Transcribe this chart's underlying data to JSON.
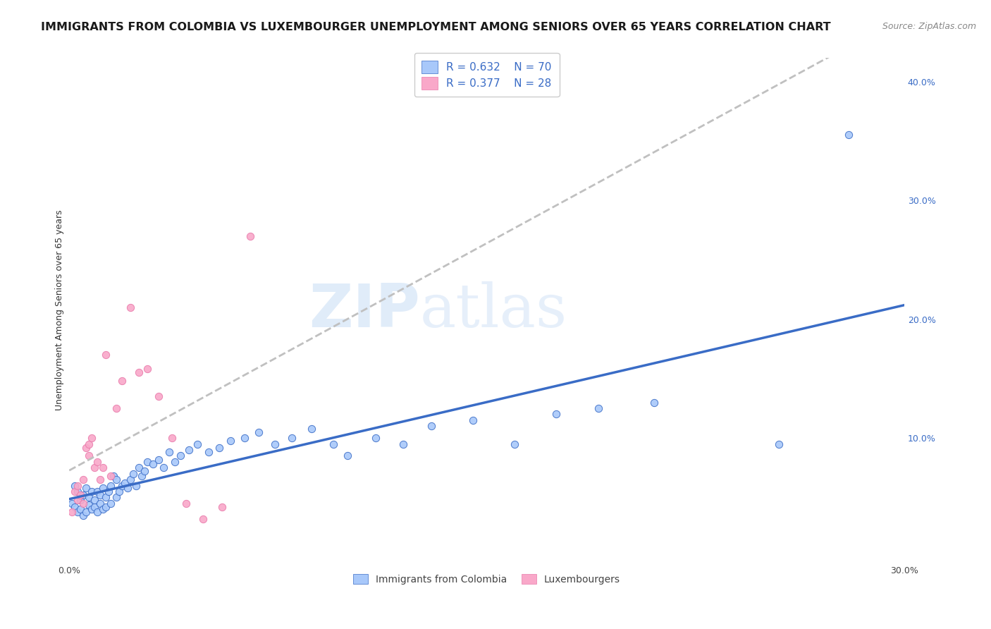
{
  "title": "IMMIGRANTS FROM COLOMBIA VS LUXEMBOURGER UNEMPLOYMENT AMONG SENIORS OVER 65 YEARS CORRELATION CHART",
  "source": "Source: ZipAtlas.com",
  "ylabel": "Unemployment Among Seniors over 65 years",
  "xlim": [
    0.0,
    0.3
  ],
  "ylim": [
    -0.005,
    0.42
  ],
  "right_yticks": [
    0.0,
    0.1,
    0.2,
    0.3,
    0.4
  ],
  "right_yticklabels": [
    "",
    "10.0%",
    "20.0%",
    "30.0%",
    "40.0%"
  ],
  "xticks": [
    0.0,
    0.05,
    0.1,
    0.15,
    0.2,
    0.25,
    0.3
  ],
  "xticklabels": [
    "0.0%",
    "",
    "",
    "",
    "",
    "",
    "30.0%"
  ],
  "color_colombia": "#a8c8fa",
  "color_luxembourg": "#f9a8c9",
  "color_line_colombia": "#3a6cc6",
  "color_line_luxembourg": "#e87aaa",
  "color_line_dashed": "#c0c0c0",
  "watermark_zip": "ZIP",
  "watermark_atlas": "atlas",
  "colombia_x": [
    0.001,
    0.002,
    0.002,
    0.003,
    0.003,
    0.004,
    0.004,
    0.005,
    0.005,
    0.006,
    0.006,
    0.007,
    0.007,
    0.008,
    0.008,
    0.009,
    0.009,
    0.01,
    0.01,
    0.011,
    0.011,
    0.012,
    0.012,
    0.013,
    0.013,
    0.014,
    0.015,
    0.015,
    0.016,
    0.017,
    0.017,
    0.018,
    0.019,
    0.02,
    0.021,
    0.022,
    0.023,
    0.024,
    0.025,
    0.026,
    0.027,
    0.028,
    0.03,
    0.032,
    0.034,
    0.036,
    0.038,
    0.04,
    0.043,
    0.046,
    0.05,
    0.054,
    0.058,
    0.063,
    0.068,
    0.074,
    0.08,
    0.087,
    0.095,
    0.1,
    0.11,
    0.12,
    0.13,
    0.145,
    0.16,
    0.175,
    0.19,
    0.21,
    0.255,
    0.28
  ],
  "colombia_y": [
    0.045,
    0.042,
    0.06,
    0.038,
    0.055,
    0.04,
    0.048,
    0.035,
    0.052,
    0.038,
    0.058,
    0.044,
    0.05,
    0.04,
    0.055,
    0.042,
    0.048,
    0.038,
    0.055,
    0.045,
    0.052,
    0.04,
    0.058,
    0.042,
    0.05,
    0.055,
    0.06,
    0.045,
    0.068,
    0.05,
    0.065,
    0.055,
    0.06,
    0.062,
    0.058,
    0.065,
    0.07,
    0.06,
    0.075,
    0.068,
    0.072,
    0.08,
    0.078,
    0.082,
    0.075,
    0.088,
    0.08,
    0.085,
    0.09,
    0.095,
    0.088,
    0.092,
    0.098,
    0.1,
    0.105,
    0.095,
    0.1,
    0.108,
    0.095,
    0.085,
    0.1,
    0.095,
    0.11,
    0.115,
    0.095,
    0.12,
    0.125,
    0.13,
    0.095,
    0.355
  ],
  "luxembourg_x": [
    0.001,
    0.002,
    0.003,
    0.003,
    0.004,
    0.005,
    0.005,
    0.006,
    0.007,
    0.007,
    0.008,
    0.009,
    0.01,
    0.011,
    0.012,
    0.013,
    0.015,
    0.017,
    0.019,
    0.022,
    0.025,
    0.028,
    0.032,
    0.037,
    0.042,
    0.048,
    0.055,
    0.065
  ],
  "luxembourg_y": [
    0.038,
    0.055,
    0.06,
    0.048,
    0.052,
    0.045,
    0.065,
    0.092,
    0.085,
    0.095,
    0.1,
    0.075,
    0.08,
    0.065,
    0.075,
    0.17,
    0.068,
    0.125,
    0.148,
    0.21,
    0.155,
    0.158,
    0.135,
    0.1,
    0.045,
    0.032,
    0.042,
    0.27
  ],
  "title_fontsize": 11.5,
  "axis_fontsize": 9,
  "tick_fontsize": 9,
  "source_fontsize": 9
}
